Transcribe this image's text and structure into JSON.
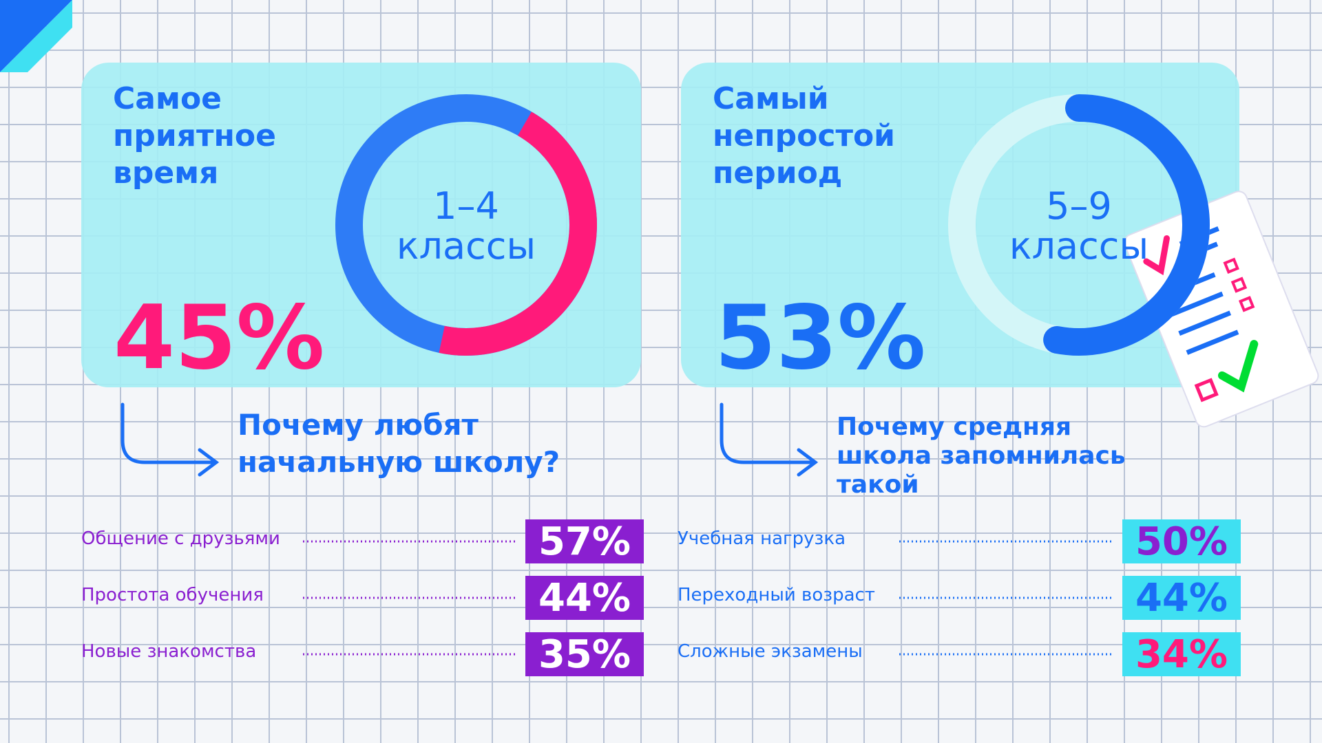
{
  "panels": [
    {
      "title_lines": [
        "Самое",
        "приятное",
        "время"
      ],
      "center_lines": [
        "1–4",
        "классы"
      ],
      "value": 45,
      "value_label": "45%",
      "question_lines": [
        "Почему любят",
        "начальную школу?"
      ],
      "items": [
        {
          "label": "Общение с друзьями",
          "value": 57,
          "value_label": "57%"
        },
        {
          "label": "Простота обучения",
          "value": 44,
          "value_label": "44%"
        },
        {
          "label": "Новые знакомства",
          "value": 35,
          "value_label": "35%"
        }
      ]
    },
    {
      "title_lines": [
        "Самый",
        "непростой",
        "период"
      ],
      "center_lines": [
        "5–9",
        "классы"
      ],
      "value": 53,
      "value_label": "53%",
      "question_lines": [
        "Почему средняя",
        "школа запомнилась",
        "такой"
      ],
      "items": [
        {
          "label": "Учебная нагрузка",
          "value": 50,
          "value_label": "50%"
        },
        {
          "label": "Переходный возраст",
          "value": 44,
          "value_label": "44%"
        },
        {
          "label": "Сложные экзамены",
          "value": 34,
          "value_label": "34%"
        }
      ]
    }
  ]
}
